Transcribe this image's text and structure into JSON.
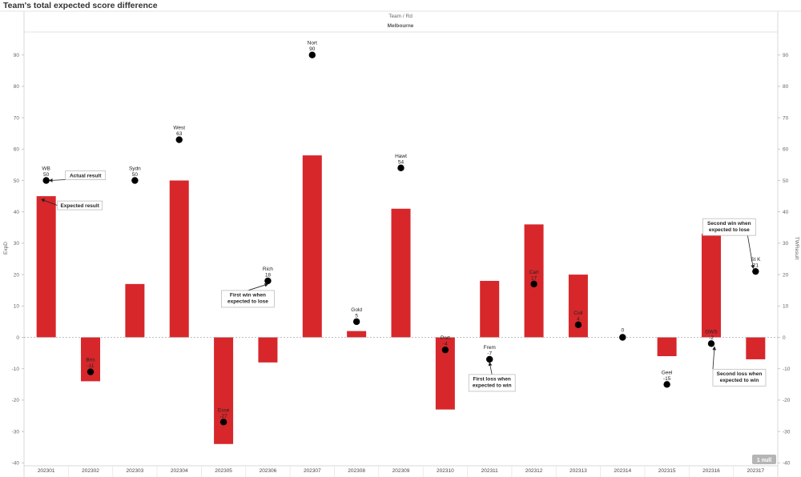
{
  "page": {
    "title": "Team's total expected score difference",
    "header_label": "Team  /  Rd",
    "header_group": "Melbourne"
  },
  "chart_data": {
    "type": "bar",
    "categories": [
      "202301",
      "202302",
      "202303",
      "202304",
      "202305",
      "202306",
      "202307",
      "202308",
      "202309",
      "202310",
      "202311",
      "202312",
      "202313",
      "202314",
      "202315",
      "202316",
      "202317"
    ],
    "bar_values": [
      45,
      -14,
      17,
      50,
      -34,
      -8,
      58,
      2,
      41,
      -23,
      18,
      36,
      20,
      null,
      -6,
      33,
      -7
    ],
    "points": [
      {
        "team": "WB",
        "value": 50
      },
      {
        "team": "Bris",
        "value": -11
      },
      {
        "team": "Sydn",
        "value": 50
      },
      {
        "team": "West",
        "value": 63
      },
      {
        "team": "Esse",
        "value": -27
      },
      {
        "team": "Rich",
        "value": 18
      },
      {
        "team": "Nort",
        "value": 90
      },
      {
        "team": "Gold",
        "value": 5
      },
      {
        "team": "Hawt",
        "value": 54
      },
      {
        "team": "Port",
        "value": -4
      },
      {
        "team": "Frem",
        "value": -7
      },
      {
        "team": "Carl",
        "value": 17
      },
      {
        "team": "Coll",
        "value": 4
      },
      {
        "team": "",
        "value": 0
      },
      {
        "team": "Geel",
        "value": -15
      },
      {
        "team": "GWS",
        "value": -2
      },
      {
        "team": "St K",
        "value": 21
      }
    ],
    "ylabel_left": "ExpD",
    "ylabel_right": "TWResult",
    "ylim": [
      -40,
      97
    ],
    "yticks": [
      90,
      80,
      70,
      60,
      50,
      40,
      30,
      20,
      10,
      0,
      -10,
      -20,
      -30,
      -40
    ],
    "bar_color": "#d7272b",
    "point_color": "#000000",
    "annotations": [
      {
        "text": [
          "Actual result"
        ],
        "category": "202301",
        "value": 50
      },
      {
        "text": [
          "Expected result"
        ],
        "category": "202301",
        "value": 45
      },
      {
        "text": [
          "First win when",
          "expected to lose"
        ],
        "category": "202306",
        "value": 18
      },
      {
        "text": [
          "First loss when",
          "expected to win"
        ],
        "category": "202311",
        "value": -7
      },
      {
        "text": [
          "Second win when",
          "expected to lose"
        ],
        "category": "202317",
        "value": 21
      },
      {
        "text": [
          "Second loss when",
          "expected to win"
        ],
        "category": "202316",
        "value": -2
      }
    ],
    "null_badge": "1 null"
  }
}
